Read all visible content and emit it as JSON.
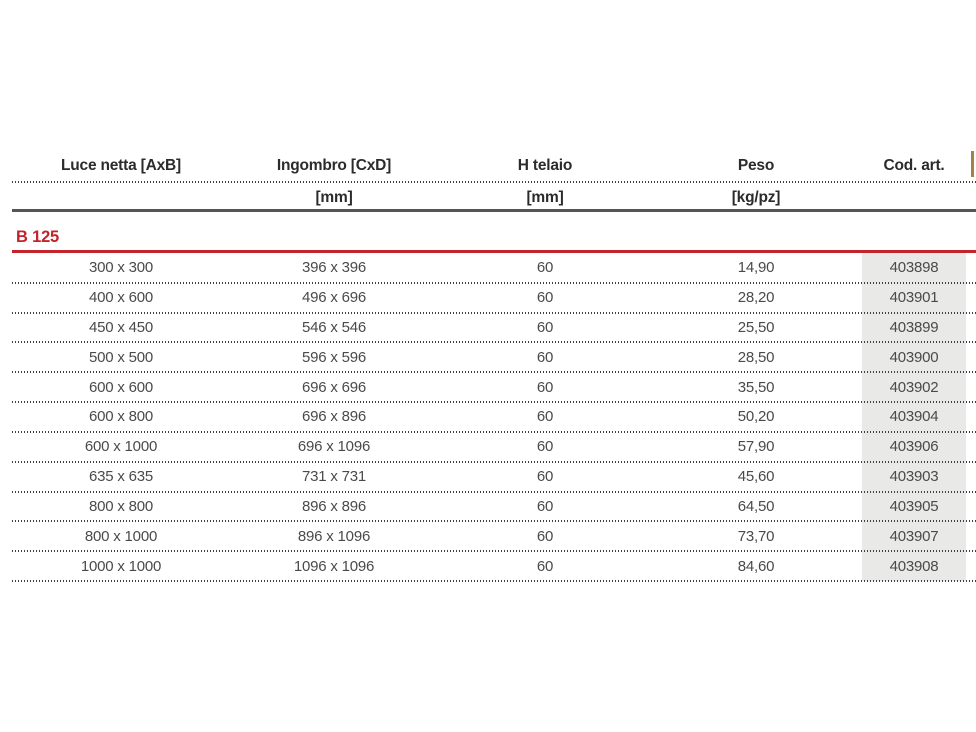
{
  "theme": {
    "accent_red": "#c5232b",
    "header_rule_dark": "#555555",
    "dotted_line_color": "#3f3f3f",
    "code_column_bg": "#e9e9e7",
    "clipped_glyph_color": "#a5804a",
    "header_text_color": "#2b2b2b",
    "value_text_color": "#4a4a4a"
  },
  "table": {
    "section_label": "B 125",
    "columns": [
      {
        "label": "Luce netta [AxB]",
        "unit": ""
      },
      {
        "label": "Ingombro [CxD]",
        "unit": "[mm]"
      },
      {
        "label": "H telaio",
        "unit": "[mm]"
      },
      {
        "label": "Peso",
        "unit": "[kg/pz]"
      },
      {
        "label": "Cod. art.",
        "unit": ""
      }
    ],
    "rows": [
      [
        "300 x 300",
        "396 x 396",
        "60",
        "14,90",
        "403898"
      ],
      [
        "400 x 600",
        "496 x 696",
        "60",
        "28,20",
        "403901"
      ],
      [
        "450 x 450",
        "546 x 546",
        "60",
        "25,50",
        "403899"
      ],
      [
        "500 x 500",
        "596 x 596",
        "60",
        "28,50",
        "403900"
      ],
      [
        "600 x 600",
        "696 x 696",
        "60",
        "35,50",
        "403902"
      ],
      [
        "600 x 800",
        "696 x 896",
        "60",
        "50,20",
        "403904"
      ],
      [
        "600 x 1000",
        "696 x 1096",
        "60",
        "57,90",
        "403906"
      ],
      [
        "635 x 635",
        "731 x 731",
        "60",
        "45,60",
        "403903"
      ],
      [
        "800 x 800",
        "896 x 896",
        "60",
        "64,50",
        "403905"
      ],
      [
        "800 x 1000",
        "896 x 1096",
        "60",
        "73,70",
        "403907"
      ],
      [
        "1000 x 1000",
        "1096 x 1096",
        "60",
        "84,60",
        "403908"
      ]
    ]
  }
}
